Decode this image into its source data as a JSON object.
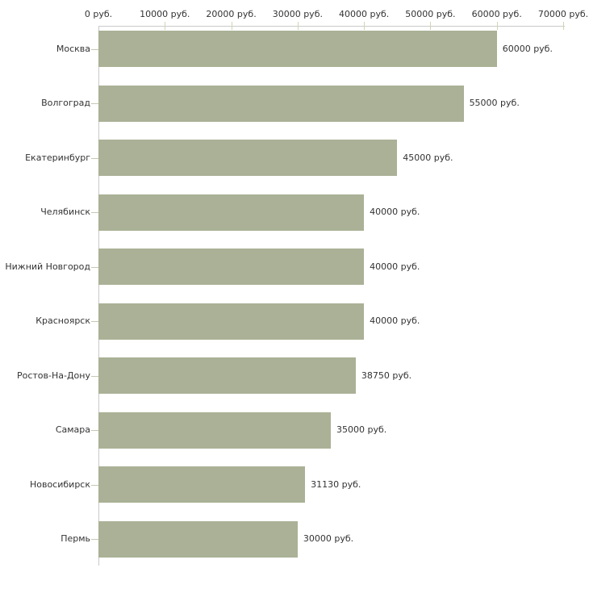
{
  "chart_data": {
    "type": "bar",
    "orientation": "horizontal",
    "title": "",
    "xlabel": "",
    "ylabel": "",
    "unit": "руб.",
    "grid": false,
    "legend": false,
    "xlim": [
      0,
      70000
    ],
    "categories": [
      "Москва",
      "Волгоград",
      "Екатеринбург",
      "Челябинск",
      "Нижний Новгород",
      "Красноярск",
      "Ростов-На-Дону",
      "Самара",
      "Новосибирск",
      "Пермь"
    ],
    "values": [
      60000,
      55000,
      45000,
      40000,
      40000,
      40000,
      38750,
      35000,
      31130,
      30000
    ],
    "value_labels": [
      "60000 руб.",
      "55000 руб.",
      "45000 руб.",
      "40000 руб.",
      "40000 руб.",
      "40000 руб.",
      "38750 руб.",
      "35000 руб.",
      "31130 руб.",
      "30000 руб."
    ],
    "x_ticks": [
      {
        "value": 0,
        "label": "0 руб."
      },
      {
        "value": 10000,
        "label": "10000 руб."
      },
      {
        "value": 20000,
        "label": "20000 руб."
      },
      {
        "value": 30000,
        "label": "30000 руб."
      },
      {
        "value": 40000,
        "label": "40000 руб."
      },
      {
        "value": 50000,
        "label": "50000 руб."
      },
      {
        "value": 60000,
        "label": "60000 руб."
      },
      {
        "value": 70000,
        "label": "70000 руб."
      }
    ],
    "colors": {
      "bar": "#aab196",
      "axis_line": "#c9c9c9",
      "tick_mark": "#d2d4b4",
      "text": "#333333",
      "background": "#ffffff"
    }
  }
}
